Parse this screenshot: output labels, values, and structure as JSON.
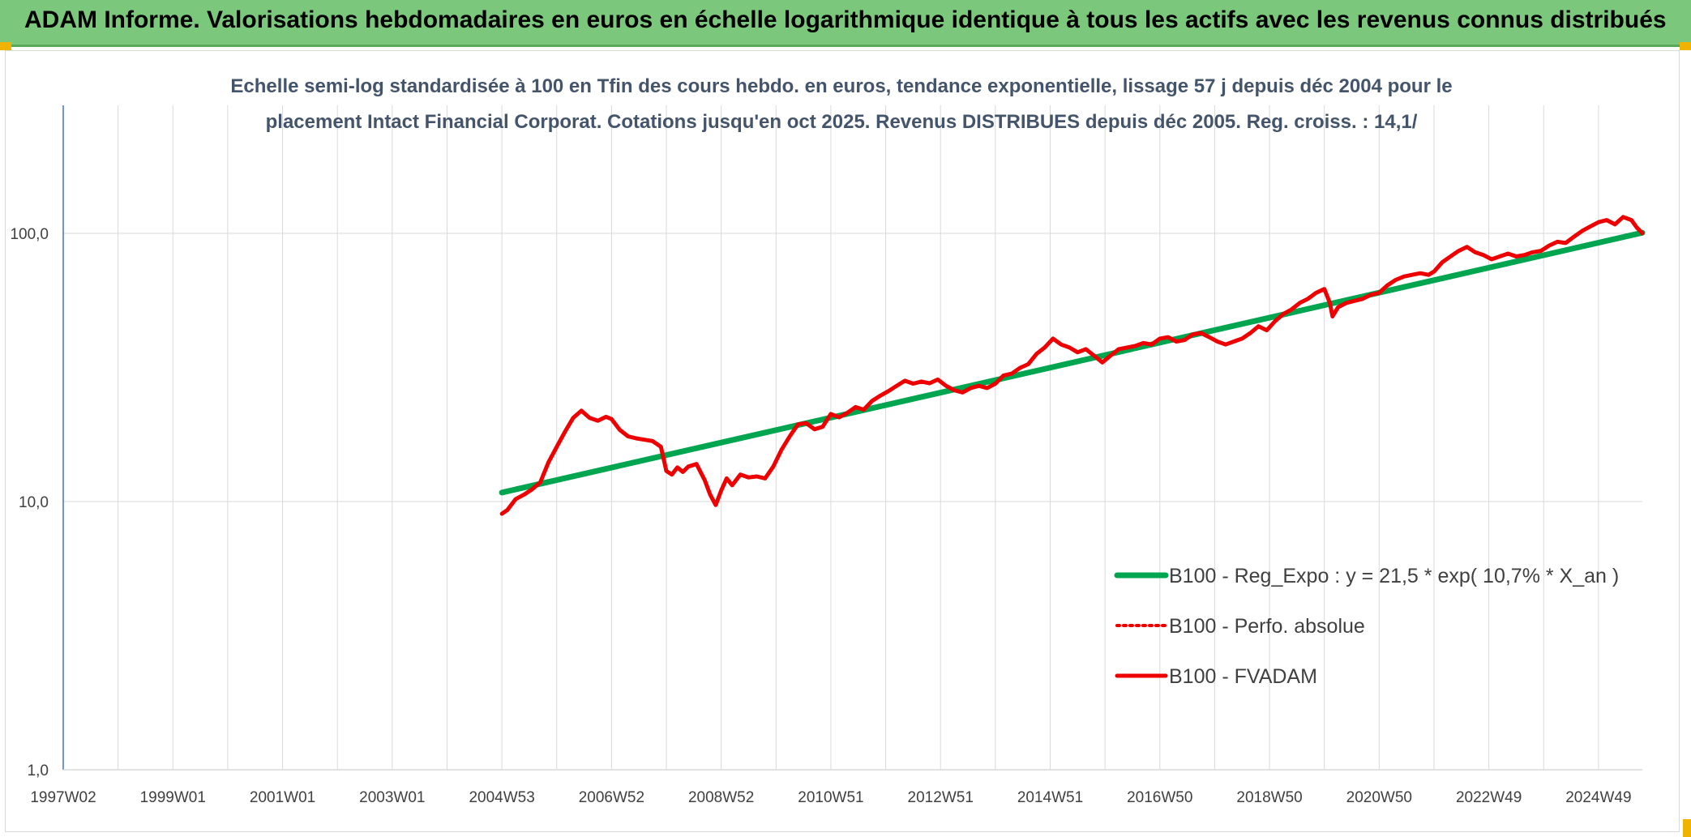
{
  "banner": {
    "title": "ADAM Informe. Valorisations hebdomadaires en euros en échelle logarithmique identique à tous les actifs avec les revenus connus distribués"
  },
  "colors": {
    "banner_bg": "#7bc77b",
    "corner_accent": "#f0b400",
    "trend": "#00a550",
    "price": "#ee0000",
    "grid": "#d9d9d9",
    "axis": "#4472c4",
    "text": "#404040",
    "title_text": "#44546a"
  },
  "chart_data": {
    "type": "line",
    "title_line1": "Echelle semi-log standardisée à 100 en Tfin des cours hebdo. en euros, tendance exponentielle, lissage 57 j depuis déc 2004 pour le",
    "title_line2": "placement Intact Financial Corporat. Cotations jusqu'en oct 2025. Revenus DISTRIBUES depuis déc 2005. Reg. croiss. : 14,1/",
    "y_scale": "log",
    "ylim": [
      1,
      300
    ],
    "y_ticks": [
      {
        "value": 1,
        "label": "1,0"
      },
      {
        "value": 10,
        "label": "10,0"
      },
      {
        "value": 100,
        "label": "100,0"
      }
    ],
    "xlim": [
      1997.0,
      2025.8
    ],
    "x_ticks": [
      {
        "value": 1997.0,
        "label": "1997W02"
      },
      {
        "value": 1999.0,
        "label": "1999W01"
      },
      {
        "value": 2001.0,
        "label": "2001W01"
      },
      {
        "value": 2003.0,
        "label": "2003W01"
      },
      {
        "value": 2005.0,
        "label": "2004W53"
      },
      {
        "value": 2007.0,
        "label": "2006W52"
      },
      {
        "value": 2009.0,
        "label": "2008W52"
      },
      {
        "value": 2011.0,
        "label": "2010W51"
      },
      {
        "value": 2013.0,
        "label": "2012W51"
      },
      {
        "value": 2015.0,
        "label": "2014W51"
      },
      {
        "value": 2017.0,
        "label": "2016W50"
      },
      {
        "value": 2019.0,
        "label": "2018W50"
      },
      {
        "value": 2021.0,
        "label": "2020W50"
      },
      {
        "value": 2023.0,
        "label": "2022W49"
      },
      {
        "value": 2025.0,
        "label": "2024W49"
      }
    ],
    "grid_x": true,
    "grid_y": true,
    "legend_position": "bottom-right",
    "series": [
      {
        "name": "B100 - Reg_Expo : y = 21,5 * exp( 10,7% *  X_an )",
        "style": "solid-green",
        "points": [
          [
            2005.0,
            10.8
          ],
          [
            2025.8,
            100.5
          ]
        ]
      },
      {
        "name": "B100 - Perfo. absolue",
        "style": "dotted-red",
        "points": []
      },
      {
        "name": "B100 - FVADAM",
        "style": "solid-red",
        "points": [
          [
            2005.0,
            9.0
          ],
          [
            2005.1,
            9.3
          ],
          [
            2005.25,
            10.2
          ],
          [
            2005.4,
            10.6
          ],
          [
            2005.55,
            11.1
          ],
          [
            2005.7,
            11.8
          ],
          [
            2005.85,
            14.0
          ],
          [
            2006.0,
            16.0
          ],
          [
            2006.15,
            18.2
          ],
          [
            2006.3,
            20.5
          ],
          [
            2006.45,
            21.8
          ],
          [
            2006.6,
            20.5
          ],
          [
            2006.75,
            20.0
          ],
          [
            2006.9,
            20.7
          ],
          [
            2007.0,
            20.3
          ],
          [
            2007.15,
            18.5
          ],
          [
            2007.3,
            17.5
          ],
          [
            2007.45,
            17.2
          ],
          [
            2007.6,
            17.0
          ],
          [
            2007.75,
            16.8
          ],
          [
            2007.9,
            16.0
          ],
          [
            2008.0,
            13.0
          ],
          [
            2008.1,
            12.6
          ],
          [
            2008.2,
            13.4
          ],
          [
            2008.3,
            12.9
          ],
          [
            2008.4,
            13.5
          ],
          [
            2008.55,
            13.8
          ],
          [
            2008.7,
            12.0
          ],
          [
            2008.8,
            10.6
          ],
          [
            2008.9,
            9.7
          ],
          [
            2009.0,
            11.0
          ],
          [
            2009.1,
            12.2
          ],
          [
            2009.2,
            11.5
          ],
          [
            2009.35,
            12.6
          ],
          [
            2009.5,
            12.3
          ],
          [
            2009.65,
            12.4
          ],
          [
            2009.8,
            12.2
          ],
          [
            2009.95,
            13.5
          ],
          [
            2010.1,
            15.6
          ],
          [
            2010.25,
            17.5
          ],
          [
            2010.4,
            19.4
          ],
          [
            2010.55,
            19.6
          ],
          [
            2010.7,
            18.6
          ],
          [
            2010.85,
            19.0
          ],
          [
            2011.0,
            21.2
          ],
          [
            2011.15,
            20.6
          ],
          [
            2011.3,
            21.4
          ],
          [
            2011.45,
            22.5
          ],
          [
            2011.6,
            22.0
          ],
          [
            2011.75,
            23.7
          ],
          [
            2011.9,
            24.8
          ],
          [
            2012.05,
            25.8
          ],
          [
            2012.2,
            27.0
          ],
          [
            2012.35,
            28.2
          ],
          [
            2012.5,
            27.5
          ],
          [
            2012.65,
            28.0
          ],
          [
            2012.8,
            27.6
          ],
          [
            2012.95,
            28.5
          ],
          [
            2013.1,
            27.0
          ],
          [
            2013.25,
            26.0
          ],
          [
            2013.4,
            25.5
          ],
          [
            2013.55,
            26.5
          ],
          [
            2013.7,
            27.0
          ],
          [
            2013.85,
            26.5
          ],
          [
            2014.0,
            27.5
          ],
          [
            2014.15,
            29.5
          ],
          [
            2014.3,
            30.0
          ],
          [
            2014.45,
            31.5
          ],
          [
            2014.6,
            32.5
          ],
          [
            2014.75,
            35.5
          ],
          [
            2014.9,
            37.5
          ],
          [
            2015.05,
            40.5
          ],
          [
            2015.2,
            38.5
          ],
          [
            2015.35,
            37.5
          ],
          [
            2015.5,
            36.0
          ],
          [
            2015.65,
            37.0
          ],
          [
            2015.8,
            35.0
          ],
          [
            2015.95,
            33.0
          ],
          [
            2016.1,
            35.0
          ],
          [
            2016.25,
            37.0
          ],
          [
            2016.4,
            37.5
          ],
          [
            2016.55,
            38.0
          ],
          [
            2016.7,
            39.0
          ],
          [
            2016.85,
            38.5
          ],
          [
            2017.0,
            40.5
          ],
          [
            2017.15,
            41.0
          ],
          [
            2017.3,
            39.5
          ],
          [
            2017.45,
            40.0
          ],
          [
            2017.6,
            42.0
          ],
          [
            2017.75,
            42.5
          ],
          [
            2017.9,
            41.0
          ],
          [
            2018.05,
            39.5
          ],
          [
            2018.2,
            38.5
          ],
          [
            2018.35,
            39.5
          ],
          [
            2018.5,
            40.5
          ],
          [
            2018.65,
            42.5
          ],
          [
            2018.8,
            45.0
          ],
          [
            2018.95,
            43.5
          ],
          [
            2019.1,
            47.0
          ],
          [
            2019.25,
            50.0
          ],
          [
            2019.4,
            52.0
          ],
          [
            2019.55,
            55.0
          ],
          [
            2019.7,
            57.0
          ],
          [
            2019.85,
            60.0
          ],
          [
            2020.0,
            62.0
          ],
          [
            2020.1,
            55.0
          ],
          [
            2020.15,
            49.0
          ],
          [
            2020.25,
            53.0
          ],
          [
            2020.4,
            55.0
          ],
          [
            2020.55,
            56.0
          ],
          [
            2020.7,
            57.0
          ],
          [
            2020.85,
            59.0
          ],
          [
            2021.0,
            60.0
          ],
          [
            2021.15,
            64.0
          ],
          [
            2021.3,
            67.0
          ],
          [
            2021.45,
            69.0
          ],
          [
            2021.6,
            70.0
          ],
          [
            2021.75,
            71.0
          ],
          [
            2021.9,
            70.0
          ],
          [
            2022.0,
            72.0
          ],
          [
            2022.15,
            78.0
          ],
          [
            2022.3,
            82.0
          ],
          [
            2022.45,
            86.0
          ],
          [
            2022.6,
            89.0
          ],
          [
            2022.75,
            85.0
          ],
          [
            2022.9,
            83.0
          ],
          [
            2023.05,
            80.0
          ],
          [
            2023.2,
            82.0
          ],
          [
            2023.35,
            84.0
          ],
          [
            2023.5,
            82.0
          ],
          [
            2023.65,
            83.0
          ],
          [
            2023.8,
            85.0
          ],
          [
            2023.95,
            86.0
          ],
          [
            2024.1,
            90.0
          ],
          [
            2024.25,
            93.0
          ],
          [
            2024.4,
            92.0
          ],
          [
            2024.55,
            97.0
          ],
          [
            2024.7,
            102.0
          ],
          [
            2024.85,
            106.0
          ],
          [
            2025.0,
            110.0
          ],
          [
            2025.15,
            112.0
          ],
          [
            2025.3,
            108.0
          ],
          [
            2025.45,
            115.0
          ],
          [
            2025.6,
            112.0
          ],
          [
            2025.7,
            105.0
          ],
          [
            2025.8,
            100.0
          ]
        ]
      }
    ]
  }
}
